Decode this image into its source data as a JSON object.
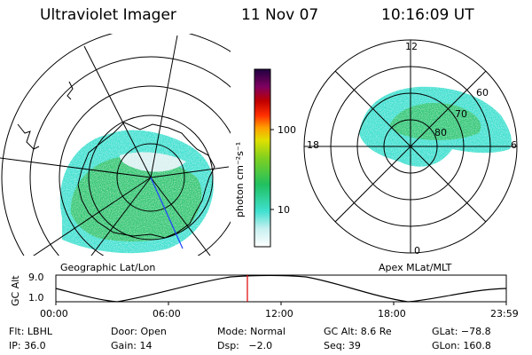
{
  "header": {
    "instrument": "Ultraviolet Imager",
    "date": "11 Nov 07",
    "time": "10:16:09 UT"
  },
  "left_panel": {
    "label": "Geographic Lat/Lon"
  },
  "right_panel": {
    "label": "Apex MLat/MLT",
    "mlt_labels": [
      "12",
      "6",
      "0",
      "18"
    ],
    "mlat_labels": [
      "60",
      "70",
      "80"
    ]
  },
  "colorbar": {
    "unit_label": "photon cm⁻²s⁻¹",
    "ticks": [
      "100",
      "10"
    ],
    "colors": [
      "#ffffff",
      "#c8f0f0",
      "#40e0d0",
      "#20c060",
      "#80d020",
      "#e0e000",
      "#ffa000",
      "#ff3000",
      "#c00000",
      "#800060",
      "#200040"
    ]
  },
  "altitude_plot": {
    "ylabel": "GC Alt",
    "y_ticks": [
      "9.0",
      "1.0"
    ],
    "x_ticks": [
      "00:00",
      "06:00",
      "12:00",
      "18:00",
      "23:59"
    ],
    "marker_time": "10:16"
  },
  "status": {
    "row1": {
      "flt": "Flt: LBHL",
      "door": "Door: Open",
      "mode": "Mode: Normal",
      "gcalt": "GC Alt: 8.6 Re",
      "glat": "GLat: −78.8"
    },
    "row2": {
      "ip": "IP: 36.0",
      "gain": "Gain: 14",
      "dsp": "Dsp:   −2.0",
      "seq": "Seq: 39",
      "glon": "GLon: 160.8"
    }
  },
  "colors": {
    "auroral_green": "#30c060",
    "auroral_cyan": "#40e0d0",
    "marker_red": "#e00000",
    "meridian_blue": "#2040ff"
  }
}
